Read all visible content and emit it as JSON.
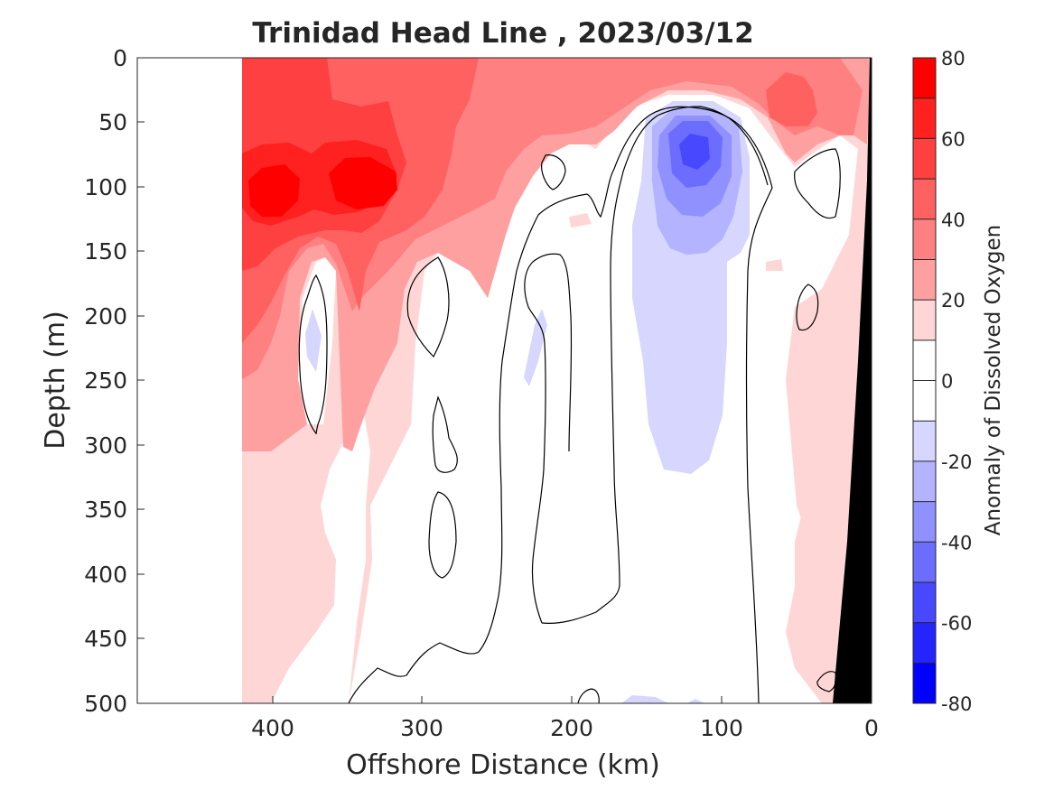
{
  "chart_data": {
    "type": "heatmap",
    "title": "Trinidad Head Line , 2023/03/12",
    "xlabel": "Offshore Distance (km)",
    "ylabel": "Depth (m)",
    "colorbar_label": "Anomaly of Dissolved Oxygen",
    "x_axis": {
      "range": [
        490,
        0
      ],
      "reversed": true,
      "ticks": [
        400,
        300,
        200,
        100,
        0
      ]
    },
    "y_axis": {
      "range": [
        0,
        500
      ],
      "reversed": true,
      "ticks": [
        0,
        50,
        100,
        150,
        200,
        250,
        300,
        350,
        400,
        450,
        500
      ]
    },
    "colorbar": {
      "range": [
        -80,
        80
      ],
      "ticks": [
        80,
        60,
        40,
        20,
        0,
        -20,
        -40,
        -60,
        -80
      ]
    },
    "color_levels": [
      {
        "range": [
          70,
          80
        ],
        "color": "#ff0000"
      },
      {
        "range": [
          60,
          70
        ],
        "color": "#ff2020"
      },
      {
        "range": [
          50,
          60
        ],
        "color": "#ff4040"
      },
      {
        "range": [
          40,
          50
        ],
        "color": "#ff6060"
      },
      {
        "range": [
          30,
          40
        ],
        "color": "#ff8080"
      },
      {
        "range": [
          20,
          30
        ],
        "color": "#ffa0a0"
      },
      {
        "range": [
          10,
          20
        ],
        "color": "#ffd6d6"
      },
      {
        "range": [
          0,
          10
        ],
        "color": "#ffffff"
      },
      {
        "range": [
          -10,
          0
        ],
        "color": "#ffffff"
      },
      {
        "range": [
          -20,
          -10
        ],
        "color": "#d6d6ff"
      },
      {
        "range": [
          -30,
          -20
        ],
        "color": "#b3b3ff"
      },
      {
        "range": [
          -40,
          -30
        ],
        "color": "#9090ff"
      },
      {
        "range": [
          -50,
          -40
        ],
        "color": "#6c6cff"
      },
      {
        "range": [
          -60,
          -50
        ],
        "color": "#4848ff"
      },
      {
        "range": [
          -70,
          -60
        ],
        "color": "#2424ff"
      },
      {
        "range": [
          -80,
          -70
        ],
        "color": "#0000ff"
      }
    ],
    "data_coverage_km": [
      0,
      420
    ],
    "features": [
      {
        "kind": "max",
        "x_km": 400,
        "depth_m": 105,
        "value": 75
      },
      {
        "kind": "max",
        "x_km": 340,
        "depth_m": 100,
        "value": 75
      },
      {
        "kind": "min",
        "x_km": 120,
        "depth_m": 80,
        "value": -55
      }
    ]
  }
}
